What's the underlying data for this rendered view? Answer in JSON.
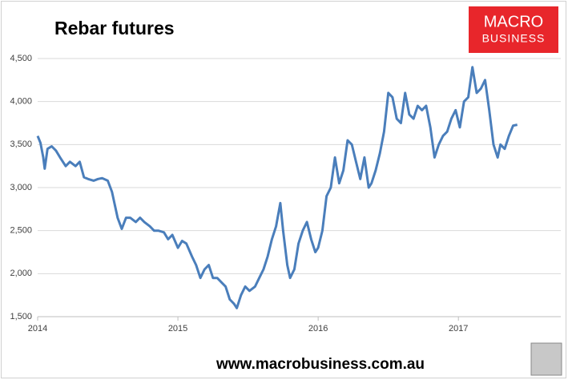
{
  "chart_data": {
    "type": "line",
    "title": "Rebar futures",
    "x": [
      2014.0,
      2014.02,
      2014.04,
      2014.05,
      2014.07,
      2014.1,
      2014.13,
      2014.16,
      2014.2,
      2014.23,
      2014.27,
      2014.3,
      2014.33,
      2014.36,
      2014.4,
      2014.43,
      2014.46,
      2014.5,
      2014.53,
      2014.55,
      2014.57,
      2014.6,
      2014.63,
      2014.66,
      2014.7,
      2014.73,
      2014.76,
      2014.8,
      2014.83,
      2014.86,
      2014.9,
      2014.93,
      2014.96,
      2015.0,
      2015.03,
      2015.06,
      2015.1,
      2015.13,
      2015.16,
      2015.19,
      2015.22,
      2015.25,
      2015.28,
      2015.31,
      2015.34,
      2015.37,
      2015.4,
      2015.42,
      2015.45,
      2015.48,
      2015.51,
      2015.55,
      2015.58,
      2015.61,
      2015.64,
      2015.67,
      2015.7,
      2015.73,
      2015.75,
      2015.78,
      2015.8,
      2015.83,
      2015.86,
      2015.89,
      2015.92,
      2015.95,
      2015.98,
      2016.0,
      2016.03,
      2016.06,
      2016.09,
      2016.12,
      2016.15,
      2016.18,
      2016.21,
      2016.24,
      2016.27,
      2016.3,
      2016.33,
      2016.36,
      2016.38,
      2016.41,
      2016.44,
      2016.47,
      2016.5,
      2016.53,
      2016.56,
      2016.59,
      2016.62,
      2016.65,
      2016.68,
      2016.71,
      2016.74,
      2016.77,
      2016.8,
      2016.83,
      2016.86,
      2016.89,
      2016.92,
      2016.95,
      2016.98,
      2017.01,
      2017.04,
      2017.07,
      2017.1,
      2017.13,
      2017.16,
      2017.19,
      2017.22,
      2017.25,
      2017.28,
      2017.3,
      2017.33,
      2017.36,
      2017.39,
      2017.42
    ],
    "values": [
      3600,
      3520,
      3350,
      3220,
      3450,
      3480,
      3430,
      3350,
      3250,
      3300,
      3250,
      3300,
      3120,
      3100,
      3080,
      3100,
      3110,
      3080,
      2950,
      2800,
      2650,
      2520,
      2650,
      2650,
      2600,
      2650,
      2600,
      2550,
      2500,
      2500,
      2480,
      2400,
      2450,
      2300,
      2380,
      2350,
      2200,
      2100,
      1950,
      2050,
      2100,
      1950,
      1950,
      1900,
      1850,
      1700,
      1650,
      1600,
      1750,
      1850,
      1800,
      1850,
      1950,
      2050,
      2200,
      2400,
      2550,
      2820,
      2500,
      2100,
      1950,
      2050,
      2350,
      2500,
      2600,
      2400,
      2250,
      2300,
      2500,
      2900,
      3000,
      3350,
      3050,
      3200,
      3550,
      3500,
      3300,
      3100,
      3350,
      3000,
      3050,
      3200,
      3400,
      3650,
      4100,
      4050,
      3800,
      3750,
      4100,
      3850,
      3800,
      3950,
      3900,
      3950,
      3700,
      3350,
      3500,
      3600,
      3650,
      3800,
      3900,
      3700,
      4000,
      4050,
      4400,
      4100,
      4150,
      4250,
      3900,
      3500,
      3350,
      3500,
      3450,
      3600,
      3720,
      3730
    ],
    "color": "#4a7ebb",
    "xlim": [
      2014,
      2017.73
    ],
    "xticks": [
      2014,
      2015,
      2016,
      2017
    ],
    "ylim": [
      1500,
      4500
    ],
    "yticks": [
      {
        "value": 1500,
        "label": "1,500"
      },
      {
        "value": 2000,
        "label": "2,000"
      },
      {
        "value": 2500,
        "label": "2,500"
      },
      {
        "value": 3000,
        "label": "3,000"
      },
      {
        "value": 3500,
        "label": "3,500"
      },
      {
        "value": 4000,
        "label": "4,000"
      },
      {
        "value": 4500,
        "label": "4,500"
      }
    ],
    "grid": true
  },
  "branding": {
    "logo_top": "MACRO",
    "logo_bottom": "BUSINESS",
    "url": "www.macrobusiness.com.au"
  }
}
